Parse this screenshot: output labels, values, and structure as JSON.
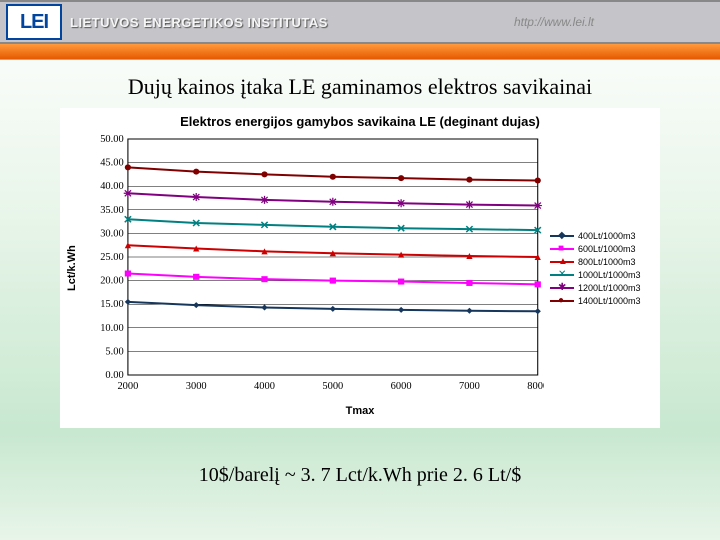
{
  "header": {
    "logo_text": "LEI",
    "institution": "LIETUVOS ENERGETIKOS INSTITUTAS",
    "url": "http://www.lei.lt"
  },
  "slide_title": "Dujų kainos įtaka LE gaminamos elektros savikainai",
  "footnote": "10$/barelį ~ 3. 7 Lct/k.Wh prie 2. 6 Lt/$",
  "chart": {
    "type": "line",
    "title": "Elektros energijos gamybos savikaina LE (deginant dujas)",
    "xlabel": "Tmax",
    "ylabel": "Lct/k.Wh",
    "xlim": [
      2000,
      8000
    ],
    "xticks": [
      2000,
      3000,
      4000,
      5000,
      6000,
      7000,
      8000
    ],
    "ylim": [
      0,
      50
    ],
    "yticks": [
      0.0,
      5.0,
      10.0,
      15.0,
      20.0,
      25.0,
      30.0,
      35.0,
      40.0,
      45.0,
      50.0
    ],
    "ytick_labels": [
      "0.00",
      "5.00",
      "10.00",
      "15.00",
      "20.00",
      "25.00",
      "30.00",
      "35.00",
      "40.00",
      "45.00",
      "50.00"
    ],
    "background_color": "#ffffff",
    "grid_color": "#000000",
    "axis_color": "#000000",
    "tick_fontsize": 10,
    "label_fontsize": 11,
    "title_fontsize": 13,
    "legend_fontsize": 9,
    "line_width": 2,
    "marker_size": 6,
    "series": [
      {
        "label": "400Lt/1000m3",
        "color": "#16365c",
        "marker": "diamond",
        "x": [
          2000,
          3000,
          4000,
          5000,
          6000,
          7000,
          8000
        ],
        "y": [
          15.5,
          14.8,
          14.3,
          14.0,
          13.8,
          13.6,
          13.5
        ]
      },
      {
        "label": "600Lt/1000m3",
        "color": "#ff00ff",
        "marker": "square",
        "x": [
          2000,
          3000,
          4000,
          5000,
          6000,
          7000,
          8000
        ],
        "y": [
          21.5,
          20.8,
          20.3,
          20.0,
          19.8,
          19.5,
          19.2
        ]
      },
      {
        "label": "800Lt/1000m3",
        "color": "#cc0000",
        "marker": "triangle",
        "x": [
          2000,
          3000,
          4000,
          5000,
          6000,
          7000,
          8000
        ],
        "y": [
          27.5,
          26.8,
          26.2,
          25.8,
          25.5,
          25.2,
          25.0
        ]
      },
      {
        "label": "1000Lt/1000m3",
        "color": "#008080",
        "marker": "x",
        "x": [
          2000,
          3000,
          4000,
          5000,
          6000,
          7000,
          8000
        ],
        "y": [
          33.0,
          32.2,
          31.8,
          31.4,
          31.1,
          30.9,
          30.7
        ]
      },
      {
        "label": "1200Lt/1000m3",
        "color": "#800080",
        "marker": "star",
        "x": [
          2000,
          3000,
          4000,
          5000,
          6000,
          7000,
          8000
        ],
        "y": [
          38.5,
          37.7,
          37.1,
          36.7,
          36.4,
          36.1,
          35.9
        ]
      },
      {
        "label": "1400Lt/1000m3",
        "color": "#800000",
        "marker": "circle",
        "x": [
          2000,
          3000,
          4000,
          5000,
          6000,
          7000,
          8000
        ],
        "y": [
          44.0,
          43.1,
          42.5,
          42.0,
          41.7,
          41.4,
          41.2
        ]
      }
    ]
  }
}
